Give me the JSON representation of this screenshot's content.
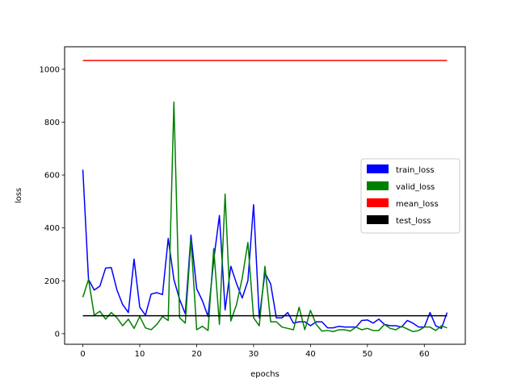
{
  "chart_data": {
    "type": "line",
    "xlabel": "epochs",
    "ylabel": "loss",
    "xlim": [
      -3.2,
      67.2
    ],
    "ylim": [
      -40,
      1085
    ],
    "x_ticks": [
      0,
      10,
      20,
      30,
      40,
      50,
      60
    ],
    "y_ticks": [
      0,
      200,
      400,
      600,
      800,
      1000
    ],
    "grid": false,
    "legend_position": "center-right",
    "series": [
      {
        "name": "train_loss",
        "color": "#0000ff",
        "x": [
          0,
          1,
          2,
          3,
          4,
          5,
          6,
          7,
          8,
          9,
          10,
          11,
          12,
          13,
          14,
          15,
          16,
          17,
          18,
          19,
          20,
          21,
          22,
          23,
          24,
          25,
          26,
          27,
          28,
          29,
          30,
          31,
          32,
          33,
          34,
          35,
          36,
          37,
          38,
          39,
          40,
          41,
          42,
          43,
          44,
          45,
          46,
          47,
          48,
          49,
          50,
          51,
          52,
          53,
          54,
          55,
          56,
          57,
          58,
          59,
          60,
          61,
          62,
          63,
          64
        ],
        "y": [
          620,
          205,
          165,
          180,
          248,
          250,
          165,
          110,
          80,
          282,
          100,
          70,
          150,
          155,
          148,
          360,
          205,
          130,
          75,
          373,
          170,
          125,
          65,
          280,
          447,
          90,
          255,
          190,
          135,
          200,
          488,
          60,
          230,
          188,
          60,
          60,
          80,
          40,
          45,
          45,
          30,
          45,
          45,
          22,
          22,
          28,
          25,
          25,
          25,
          50,
          52,
          40,
          55,
          35,
          30,
          30,
          25,
          50,
          40,
          25,
          25,
          80,
          30,
          20,
          80
        ]
      },
      {
        "name": "valid_loss",
        "color": "#008000",
        "x": [
          0,
          1,
          2,
          3,
          4,
          5,
          6,
          7,
          8,
          9,
          10,
          11,
          12,
          13,
          14,
          15,
          16,
          17,
          18,
          19,
          20,
          21,
          22,
          23,
          24,
          25,
          26,
          27,
          28,
          29,
          30,
          31,
          32,
          33,
          34,
          35,
          36,
          37,
          38,
          39,
          40,
          41,
          42,
          43,
          44,
          45,
          46,
          47,
          48,
          49,
          50,
          51,
          52,
          53,
          54,
          55,
          56,
          57,
          58,
          59,
          60,
          61,
          62,
          63,
          64
        ],
        "y": [
          138,
          205,
          70,
          85,
          55,
          80,
          60,
          30,
          55,
          20,
          65,
          22,
          15,
          35,
          65,
          50,
          876,
          60,
          40,
          355,
          15,
          28,
          12,
          322,
          35,
          528,
          48,
          110,
          210,
          345,
          60,
          30,
          255,
          45,
          45,
          25,
          20,
          15,
          100,
          15,
          88,
          35,
          10,
          12,
          8,
          15,
          15,
          10,
          25,
          15,
          20,
          12,
          12,
          35,
          20,
          15,
          28,
          18,
          8,
          12,
          25,
          25,
          12,
          30,
          22
        ]
      },
      {
        "name": "mean_loss",
        "color": "#ff0000",
        "x": [
          0,
          64
        ],
        "y": [
          1033,
          1033
        ]
      },
      {
        "name": "test_loss",
        "color": "#000000",
        "x": [
          0,
          64
        ],
        "y": [
          68,
          68
        ]
      }
    ]
  }
}
